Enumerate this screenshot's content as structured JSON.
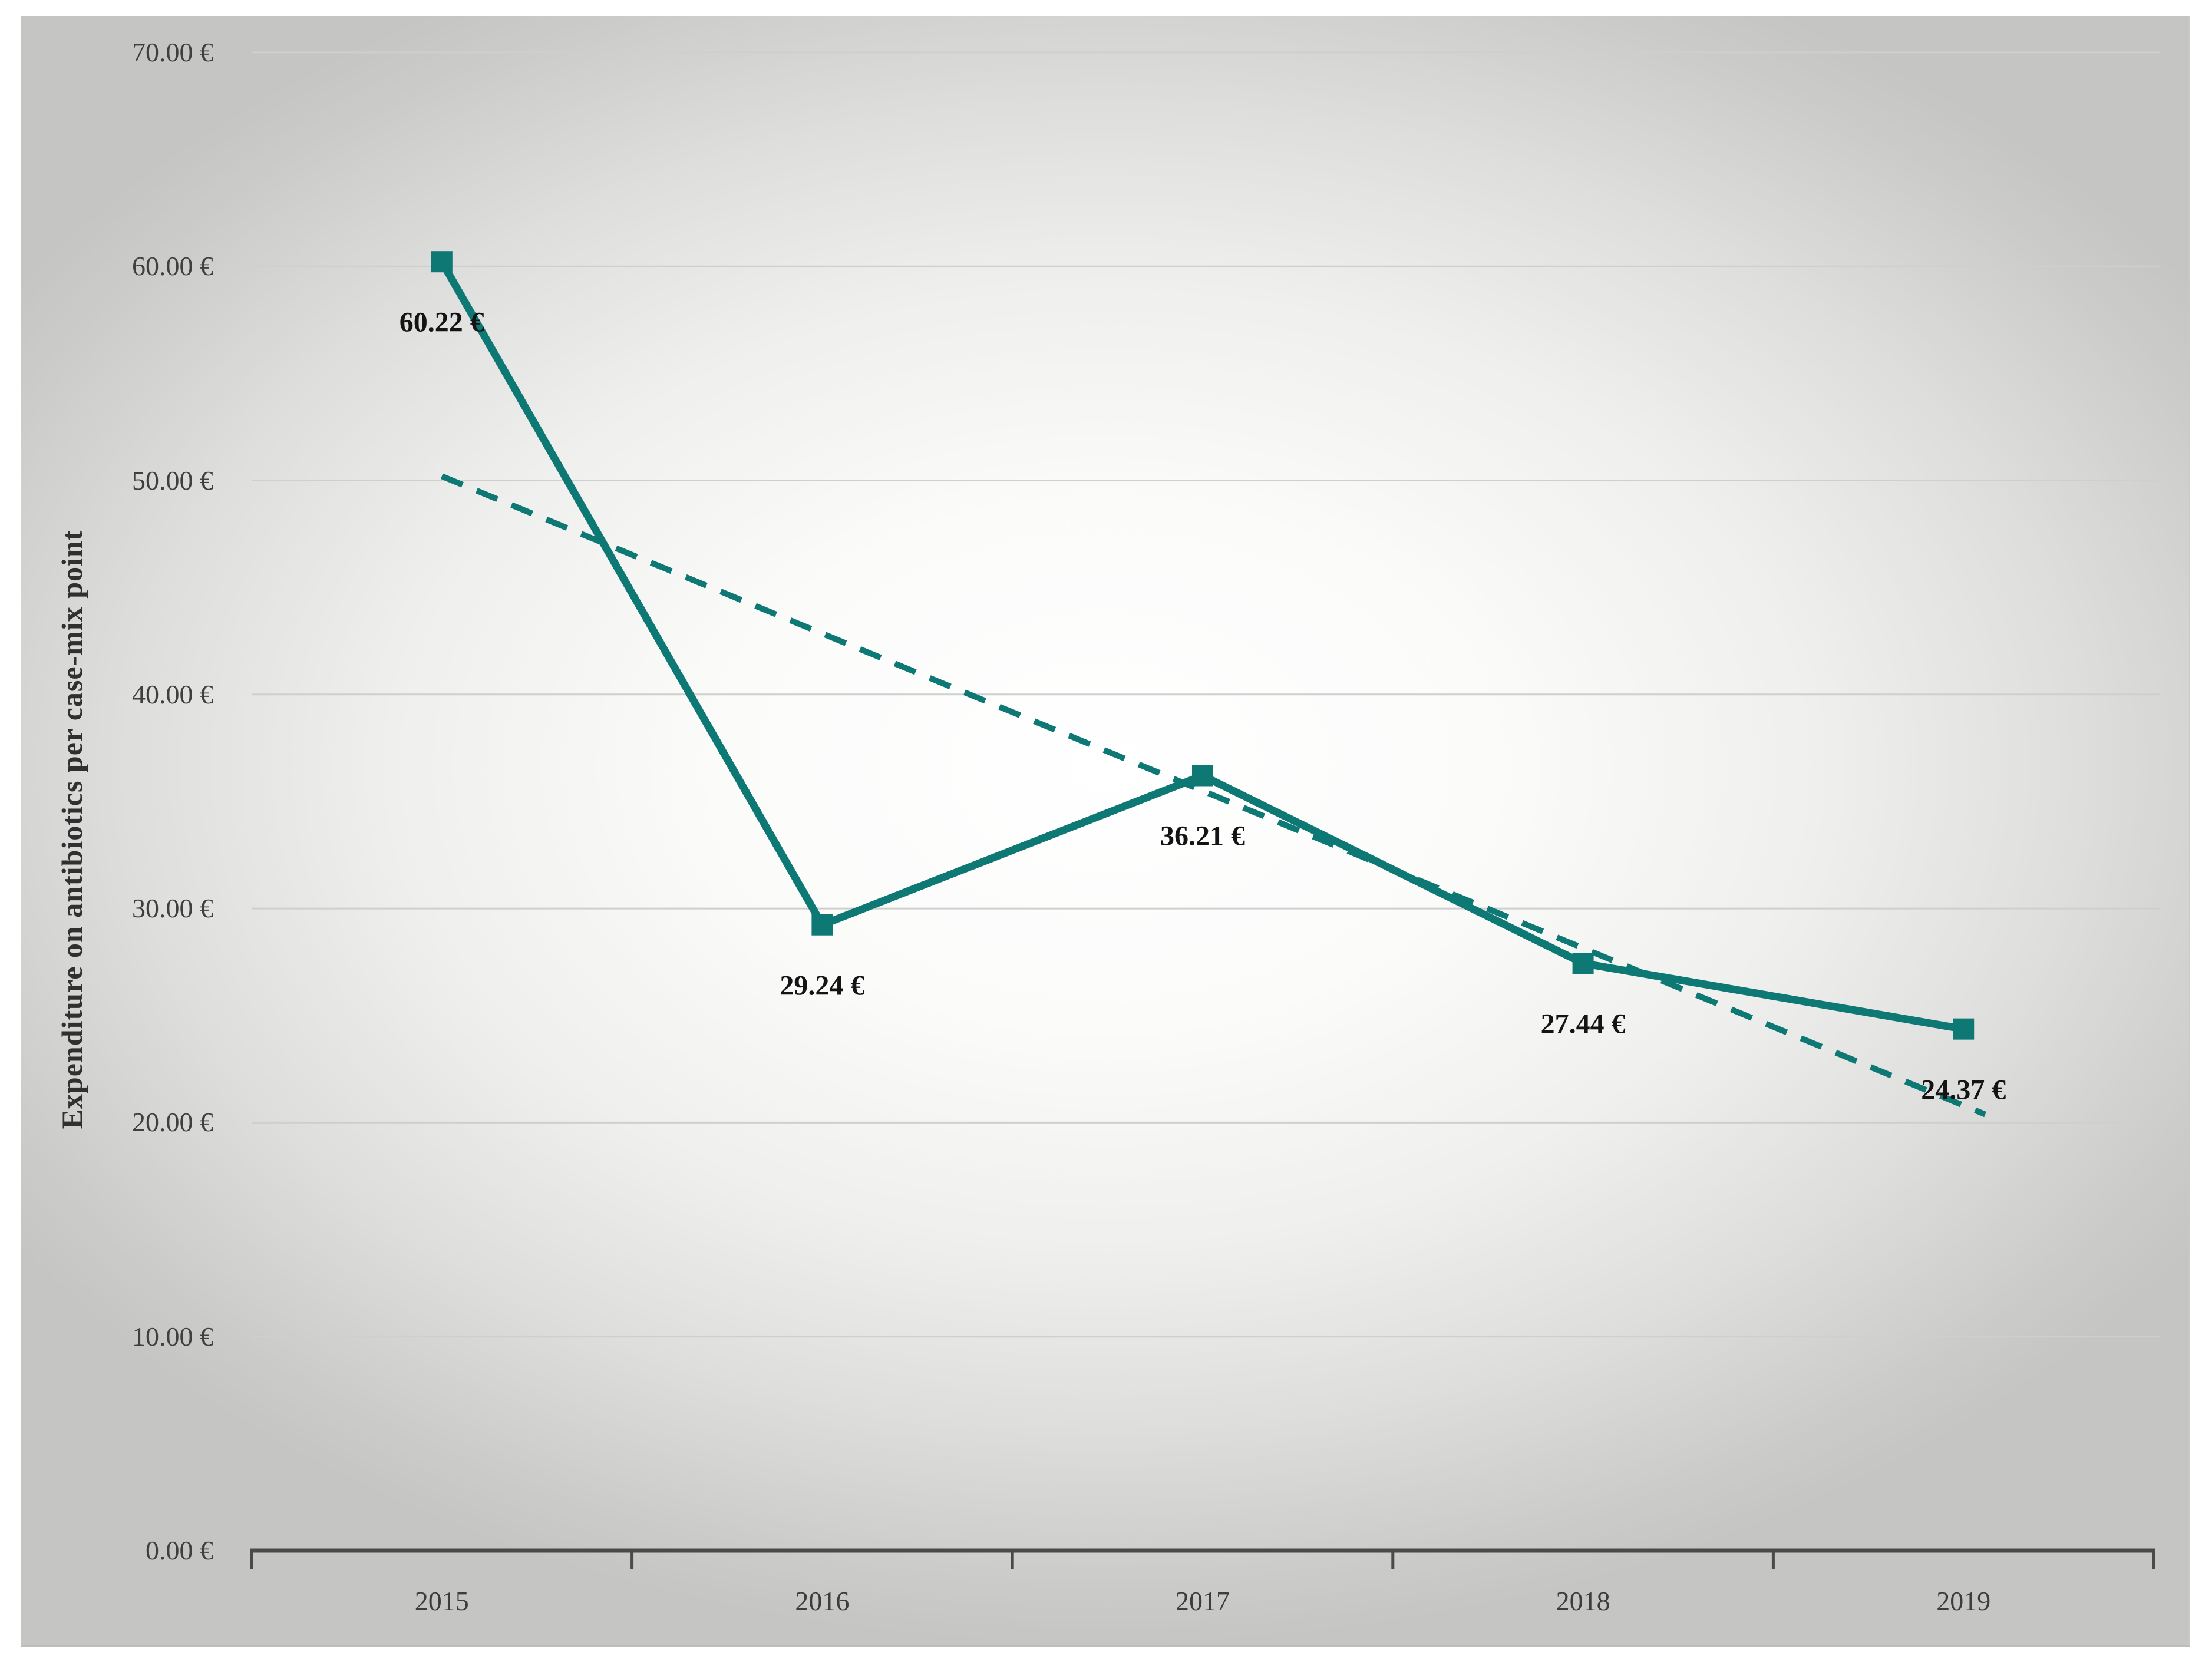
{
  "chart_data": {
    "type": "line",
    "title": "",
    "categories": [
      "2015",
      "2016",
      "2017",
      "2018",
      "2019"
    ],
    "series": [
      {
        "name": "Expenditure on antibiotics per case-mix point",
        "values": [
          60.22,
          29.24,
          36.21,
          27.44,
          24.37
        ],
        "style": "solid",
        "marker": "square"
      },
      {
        "name": "Linear trendline",
        "values": [
          50.2,
          42.85,
          35.5,
          28.15,
          20.8
        ],
        "style": "dashed",
        "marker": "none"
      }
    ],
    "data_labels": [
      "60.22 €",
      "29.24 €",
      "36.21 €",
      "27.44 €",
      "24.37 €"
    ],
    "xlabel": "",
    "ylabel": "Expenditure on antibiotics per case-mix point",
    "ylim": [
      0,
      70
    ],
    "y_tick_step": 10,
    "y_ticks": [
      "0.00 €",
      "10.00 €",
      "20.00 €",
      "30.00 €",
      "40.00 €",
      "50.00 €",
      "60.00 €",
      "70.00 €"
    ],
    "grid": "horizontal",
    "legend": "none",
    "colors": {
      "series": "#0E7974",
      "trendline": "#0E7974",
      "axis": "#4A4A4A",
      "gridline": "#CFCFCE",
      "label_text": "#141414",
      "tick_text": "#3F3F3F",
      "background_center": "#FFFFFF",
      "background_edge": "#C5C5C4"
    }
  }
}
